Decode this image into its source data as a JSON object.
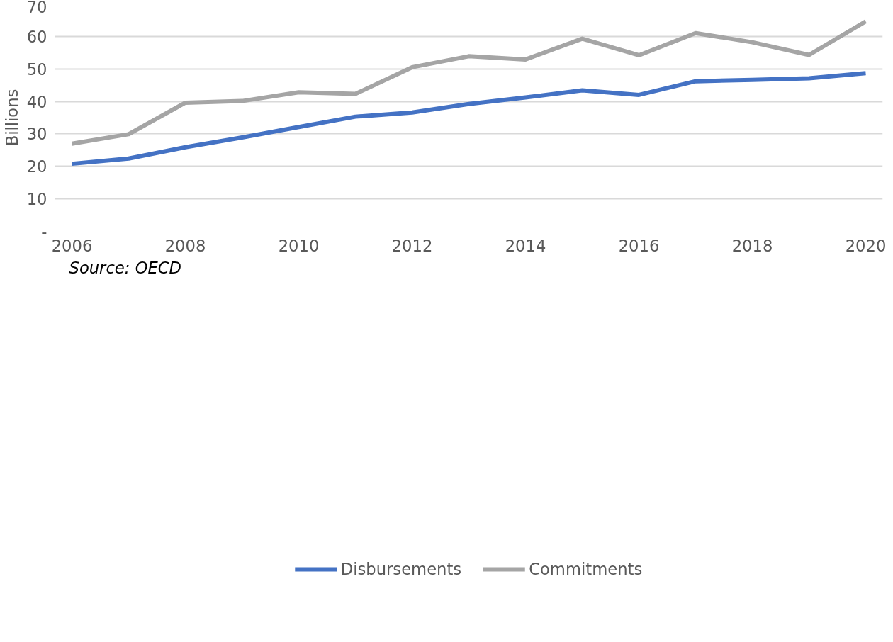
{
  "chart_data": {
    "type": "line",
    "ylabel": "Billions",
    "annotations": [
      "Source: OECD"
    ],
    "x": [
      2006,
      2007,
      2008,
      2009,
      2010,
      2011,
      2012,
      2013,
      2014,
      2015,
      2016,
      2017,
      2018,
      2019,
      2020
    ],
    "series": [
      {
        "name": "Disbursements",
        "color": "#4472c4",
        "values": [
          20.8,
          22.4,
          25.9,
          28.9,
          32.1,
          35.3,
          36.6,
          39.2,
          41.2,
          43.4,
          42.0,
          46.2,
          46.6,
          47.1,
          48.7
        ]
      },
      {
        "name": "Commitments",
        "color": "#a5a5a5",
        "values": [
          27.0,
          29.9,
          39.6,
          40.1,
          42.8,
          42.3,
          50.5,
          53.9,
          52.9,
          59.3,
          54.2,
          61.0,
          58.2,
          54.3,
          64.6
        ]
      }
    ],
    "xlim": [
      2005.7,
      2020.3
    ],
    "ylim": [
      0,
      70
    ],
    "xticks": [
      2006,
      2008,
      2010,
      2012,
      2014,
      2016,
      2018,
      2020
    ],
    "yticks": [
      {
        "value": 0,
        "label": "-"
      },
      10,
      20,
      30,
      40,
      50,
      60,
      70
    ],
    "grid": "y",
    "legend": "bottom",
    "marker": "none",
    "line_style": "solid"
  }
}
